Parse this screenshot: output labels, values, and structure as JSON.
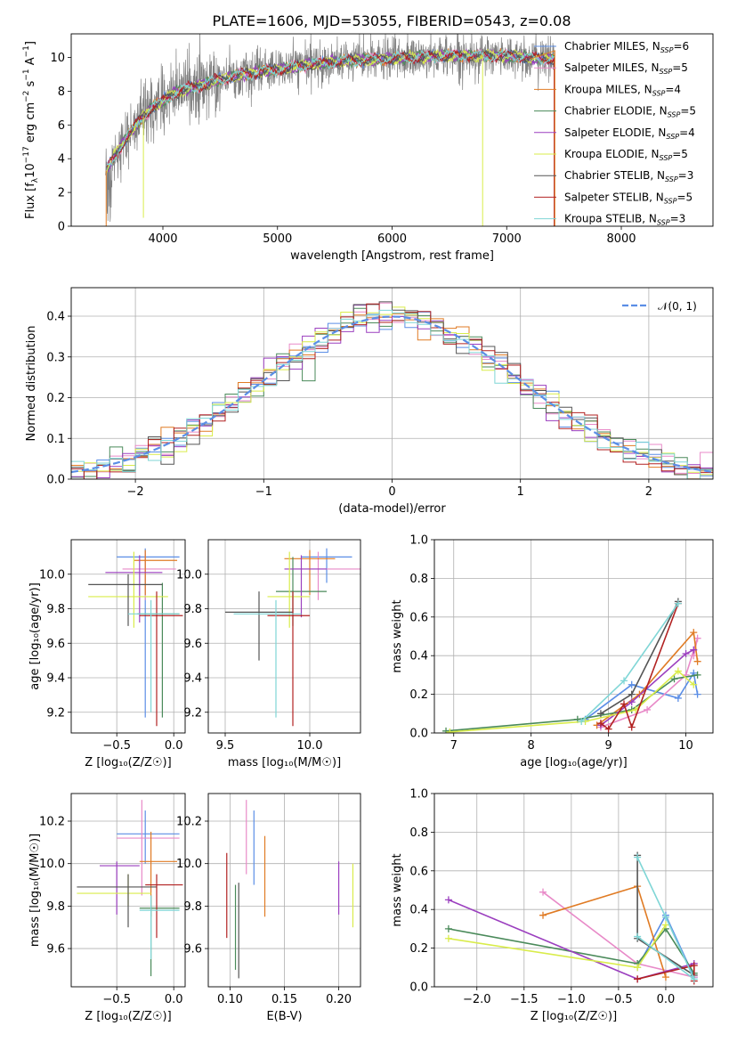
{
  "figure": {
    "title": "PLATE=1606, MJD=53055, FIBERID=0543, z=0.08"
  },
  "legend_models": [
    {
      "name": "Chabrier MILES, N",
      "sub": "SSP",
      "tail": "=6",
      "color": "#5b8ee6"
    },
    {
      "name": "Salpeter MILES, N",
      "sub": "SSP",
      "tail": "=5",
      "color": "#e88ac8"
    },
    {
      "name": "Kroupa MILES, N",
      "sub": "SSP",
      "tail": "=4",
      "color": "#e07b24"
    },
    {
      "name": "Chabrier ELODIE, N",
      "sub": "SSP",
      "tail": "=5",
      "color": "#4a8a5a"
    },
    {
      "name": "Salpeter ELODIE, N",
      "sub": "SSP",
      "tail": "=4",
      "color": "#9b3fbf"
    },
    {
      "name": "Kroupa ELODIE, N",
      "sub": "SSP",
      "tail": "=5",
      "color": "#d9ec4a"
    },
    {
      "name": "Chabrier STELIB, N",
      "sub": "SSP",
      "tail": "=3",
      "color": "#555555"
    },
    {
      "name": "Salpeter STELIB, N",
      "sub": "SSP",
      "tail": "=5",
      "color": "#b22222"
    },
    {
      "name": "Kroupa STELIB, N",
      "sub": "SSP",
      "tail": "=3",
      "color": "#7fd6d6"
    }
  ],
  "chart_data": [
    {
      "type": "line",
      "id": "spectrum",
      "xlabel": "wavelength [Angstrom, rest frame]",
      "ylabel_main": "Flux [f",
      "ylabel_sub": "λ",
      "ylabel_rest": "10",
      "ylabel_exp": "−17",
      "ylabel_units": " erg cm",
      "ylabel_exp2": "−2",
      "ylabel_s": " s",
      "ylabel_exp3": "−1",
      "ylabel_a": " A",
      "ylabel_exp4": "−1",
      "ylabel_end": "]",
      "xlim": [
        3200,
        8800
      ],
      "ylim": [
        0,
        11.4
      ],
      "xticks": [
        "4000",
        "5000",
        "6000",
        "7000",
        "8000"
      ],
      "xtick_values": [
        4000,
        5000,
        6000,
        7000,
        8000
      ],
      "yticks": [
        "0",
        "2",
        "4",
        "6",
        "8",
        "10"
      ],
      "ytick_values": [
        0,
        2,
        4,
        6,
        8,
        10
      ],
      "continuum_x": [
        3500,
        3600,
        3700,
        3800,
        3900,
        4000,
        4100,
        4300,
        4500,
        4700,
        5000,
        5300,
        5600,
        5900,
        6200,
        6500,
        6800,
        7000,
        7200,
        7400
      ],
      "continuum_y": [
        3.3,
        4.4,
        5.4,
        6.3,
        7.0,
        7.4,
        7.9,
        8.3,
        8.7,
        9.0,
        9.3,
        9.6,
        9.8,
        9.9,
        10.0,
        10.1,
        10.1,
        10.1,
        10.0,
        9.9
      ],
      "data_range": [
        3500,
        7420
      ],
      "model_end": [
        7420,
        8450
      ]
    },
    {
      "type": "line",
      "id": "residual-histogram",
      "xlabel": "(data-model)/error",
      "ylabel": "Normed distribution",
      "xlim": [
        -2.5,
        2.5
      ],
      "ylim": [
        0,
        0.47
      ],
      "xticks": [
        "−2",
        "−1",
        "0",
        "1",
        "2"
      ],
      "xtick_values": [
        -2,
        -1,
        0,
        1,
        2
      ],
      "yticks": [
        "0.0",
        "0.1",
        "0.2",
        "0.3",
        "0.4"
      ],
      "ytick_values": [
        0,
        0.1,
        0.2,
        0.3,
        0.4
      ],
      "legend": "𝒩(0, 1)",
      "gaussian": {
        "mu": 0,
        "sigma": 1
      }
    },
    {
      "type": "scatter",
      "id": "age-vs-Z",
      "xlabel": "Z [log₁₀(Z/Z☉)]",
      "ylabel": "age  [log₁₀(age/yr)]",
      "xlim": [
        -0.9,
        0.1
      ],
      "ylim": [
        9.08,
        10.2
      ],
      "xticks": [
        "−0.5",
        "0.0"
      ],
      "xtick_values": [
        -0.5,
        0.0
      ],
      "yticks": [
        "9.2",
        "9.4",
        "9.6",
        "9.8",
        "10.0"
      ],
      "ytick_values": [
        9.2,
        9.4,
        9.6,
        9.8,
        10.0
      ],
      "points": [
        {
          "x": -0.25,
          "y": 10.1,
          "xe": [
            -0.5,
            0.05
          ],
          "ye": [
            9.17,
            10.15
          ],
          "series": 0
        },
        {
          "x": -0.25,
          "y": 10.03,
          "xe": [
            -0.45,
            0.02
          ],
          "ye": [
            9.85,
            10.13
          ],
          "series": 1
        },
        {
          "x": -0.25,
          "y": 10.08,
          "xe": [
            -0.35,
            0.03
          ],
          "ye": [
            9.88,
            10.14
          ],
          "series": 2
        },
        {
          "x": -0.1,
          "y": 9.77,
          "xe": [
            -0.32,
            0.05
          ],
          "ye": [
            9.17,
            9.95
          ],
          "series": 3
        },
        {
          "x": -0.3,
          "y": 10.01,
          "xe": [
            -0.6,
            -0.1
          ],
          "ye": [
            9.72,
            10.11
          ],
          "series": 4
        },
        {
          "x": -0.35,
          "y": 9.87,
          "xe": [
            -0.75,
            -0.05
          ],
          "ye": [
            9.69,
            10.13
          ],
          "series": 5
        },
        {
          "x": -0.4,
          "y": 9.94,
          "xe": [
            -0.75,
            -0.1
          ],
          "ye": [
            9.7,
            10.0
          ],
          "series": 6
        },
        {
          "x": -0.15,
          "y": 9.76,
          "xe": [
            -0.3,
            0.08
          ],
          "ye": [
            9.12,
            9.9
          ],
          "series": 7
        },
        {
          "x": -0.2,
          "y": 9.77,
          "xe": [
            -0.4,
            0.05
          ],
          "ye": [
            9.2,
            9.85
          ],
          "series": 8
        }
      ]
    },
    {
      "type": "scatter",
      "id": "age-vs-mass",
      "xlabel": "mass [log₁₀(M/M☉)]",
      "ylabel": "",
      "xlim": [
        9.4,
        10.3
      ],
      "ylim": [
        9.08,
        10.2
      ],
      "xticks": [
        "9.5",
        "10.0"
      ],
      "xtick_values": [
        9.5,
        10.0
      ],
      "yticks": [
        "9.2",
        "9.4",
        "9.6",
        "9.8",
        "10.0"
      ],
      "ytick_values": [
        9.2,
        9.4,
        9.6,
        9.8,
        10.0
      ],
      "points": [
        {
          "x": 10.1,
          "y": 10.1,
          "xe": [
            9.95,
            10.25
          ],
          "ye": [
            9.95,
            10.15
          ],
          "series": 0
        },
        {
          "x": 10.05,
          "y": 10.03,
          "xe": [
            9.9,
            10.3
          ],
          "ye": [
            9.85,
            10.13
          ],
          "series": 1
        },
        {
          "x": 10.0,
          "y": 10.09,
          "xe": [
            9.85,
            10.15
          ],
          "ye": [
            9.88,
            10.14
          ],
          "series": 2
        },
        {
          "x": 9.9,
          "y": 9.9,
          "xe": [
            9.8,
            10.1
          ],
          "ye": [
            9.7,
            10.1
          ],
          "series": 3
        },
        {
          "x": 9.95,
          "y": 10.03,
          "xe": [
            9.85,
            10.1
          ],
          "ye": [
            9.75,
            10.11
          ],
          "series": 4
        },
        {
          "x": 9.88,
          "y": 9.87,
          "xe": [
            9.75,
            10.0
          ],
          "ye": [
            9.69,
            10.13
          ],
          "series": 5
        },
        {
          "x": 9.7,
          "y": 9.78,
          "xe": [
            9.5,
            9.9
          ],
          "ye": [
            9.5,
            9.9
          ],
          "series": 6
        },
        {
          "x": 9.9,
          "y": 9.76,
          "xe": [
            9.75,
            10.0
          ],
          "ye": [
            9.12,
            9.9
          ],
          "series": 7
        },
        {
          "x": 9.8,
          "y": 9.77,
          "xe": [
            9.55,
            9.95
          ],
          "ye": [
            9.17,
            9.85
          ],
          "series": 8
        }
      ]
    },
    {
      "type": "line",
      "id": "weight-vs-age",
      "xlabel": "age  [log₁₀(age/yr)]",
      "ylabel": "mass weight",
      "xlim": [
        6.75,
        10.35
      ],
      "ylim": [
        0,
        1.0
      ],
      "xticks": [
        "7",
        "8",
        "9",
        "10"
      ],
      "xtick_values": [
        7,
        8,
        9,
        10
      ],
      "yticks": [
        "0.0",
        "0.2",
        "0.4",
        "0.6",
        "0.8",
        "1.0"
      ],
      "ytick_values": [
        0,
        0.2,
        0.4,
        0.6,
        0.8,
        1.0
      ],
      "series": [
        {
          "name": "Chabrier MILES",
          "x": [
            8.7,
            9.3,
            9.9,
            10.1,
            10.15
          ],
          "y": [
            0.07,
            0.25,
            0.18,
            0.31,
            0.2
          ]
        },
        {
          "name": "Salpeter MILES",
          "x": [
            8.9,
            9.5,
            10.0,
            10.15,
            10.1
          ],
          "y": [
            0.03,
            0.12,
            0.3,
            0.49,
            0.4
          ]
        },
        {
          "name": "Kroupa MILES",
          "x": [
            8.85,
            9.4,
            10.1,
            10.15
          ],
          "y": [
            0.04,
            0.2,
            0.52,
            0.37
          ]
        },
        {
          "name": "Chabrier ELODIE",
          "x": [
            6.9,
            8.6,
            9.3,
            9.85,
            10.15
          ],
          "y": [
            0.01,
            0.07,
            0.12,
            0.28,
            0.3
          ]
        },
        {
          "name": "Salpeter ELODIE",
          "x": [
            8.9,
            9.3,
            10.0,
            10.1
          ],
          "y": [
            0.04,
            0.16,
            0.41,
            0.43
          ]
        },
        {
          "name": "Kroupa ELODIE",
          "x": [
            6.95,
            8.7,
            9.35,
            9.9,
            10.1
          ],
          "y": [
            0.005,
            0.06,
            0.12,
            0.32,
            0.25
          ]
        },
        {
          "name": "Chabrier STELIB",
          "x": [
            8.9,
            9.3,
            9.9
          ],
          "y": [
            0.1,
            0.2,
            0.68
          ]
        },
        {
          "name": "Salpeter STELIB",
          "x": [
            8.9,
            9.0,
            9.2,
            9.3,
            9.9
          ],
          "y": [
            0.05,
            0.02,
            0.15,
            0.03,
            0.67
          ]
        },
        {
          "name": "Kroupa STELIB",
          "x": [
            8.65,
            9.2,
            9.9
          ],
          "y": [
            0.06,
            0.27,
            0.67
          ]
        }
      ]
    },
    {
      "type": "scatter",
      "id": "mass-vs-Z",
      "xlabel": "Z [log₁₀(Z/Z☉)]",
      "ylabel": "mass [log₁₀(M/M☉)]",
      "xlim": [
        -0.9,
        0.1
      ],
      "ylim": [
        9.42,
        10.33
      ],
      "xticks": [
        "−0.5",
        "0.0"
      ],
      "xtick_values": [
        -0.5,
        0.0
      ],
      "yticks": [
        "9.6",
        "9.8",
        "10.0",
        "10.2"
      ],
      "ytick_values": [
        9.6,
        9.8,
        10.0,
        10.2
      ],
      "points": [
        {
          "x": -0.25,
          "y": 10.14,
          "xe": [
            -0.5,
            0.05
          ],
          "ye": [
            10.0,
            10.25
          ],
          "series": 0
        },
        {
          "x": -0.28,
          "y": 10.12,
          "xe": [
            -0.5,
            0.05
          ],
          "ye": [
            9.85,
            10.3
          ],
          "series": 1
        },
        {
          "x": -0.2,
          "y": 10.01,
          "xe": [
            -0.3,
            0.03
          ],
          "ye": [
            9.75,
            10.15
          ],
          "series": 2
        },
        {
          "x": -0.2,
          "y": 9.79,
          "xe": [
            -0.3,
            0.05
          ],
          "ye": [
            9.47,
            9.85
          ],
          "series": 3
        },
        {
          "x": -0.5,
          "y": 9.99,
          "xe": [
            -0.65,
            -0.3
          ],
          "ye": [
            9.76,
            10.01
          ],
          "series": 4
        },
        {
          "x": -0.4,
          "y": 9.86,
          "xe": [
            -0.85,
            -0.2
          ],
          "ye": [
            9.8,
            9.95
          ],
          "series": 5
        },
        {
          "x": -0.4,
          "y": 9.89,
          "xe": [
            -0.85,
            -0.15
          ],
          "ye": [
            9.7,
            9.95
          ],
          "series": 6
        },
        {
          "x": -0.15,
          "y": 9.9,
          "xe": [
            -0.25,
            0.08
          ],
          "ye": [
            9.65,
            9.95
          ],
          "series": 7
        },
        {
          "x": -0.2,
          "y": 9.78,
          "xe": [
            -0.3,
            0.05
          ],
          "ye": [
            9.55,
            9.85
          ],
          "series": 8
        }
      ]
    },
    {
      "type": "scatter",
      "id": "mass-vs-EBV",
      "xlabel": "E(B-V)",
      "ylabel": "",
      "xlim": [
        0.08,
        0.22
      ],
      "ylim": [
        9.42,
        10.33
      ],
      "xticks": [
        "0.10",
        "0.15",
        "0.20"
      ],
      "xtick_values": [
        0.1,
        0.15,
        0.2
      ],
      "yticks": [
        "9.6",
        "9.8",
        "10.0",
        "10.2"
      ],
      "ytick_values": [
        9.6,
        9.8,
        10.0,
        10.2
      ],
      "points": [
        {
          "x": 0.097,
          "ye": [
            9.65,
            10.05
          ],
          "series": 7
        },
        {
          "x": 0.105,
          "ye": [
            9.5,
            9.9
          ],
          "series": 3
        },
        {
          "x": 0.108,
          "ye": [
            9.46,
            9.91
          ],
          "series": 6
        },
        {
          "x": 0.115,
          "ye": [
            9.95,
            10.3
          ],
          "series": 1
        },
        {
          "x": 0.122,
          "ye": [
            9.9,
            10.25
          ],
          "series": 0
        },
        {
          "x": 0.132,
          "ye": [
            9.75,
            10.13
          ],
          "series": 2
        },
        {
          "x": 0.2,
          "ye": [
            9.76,
            10.01
          ],
          "series": 4
        },
        {
          "x": 0.213,
          "ye": [
            9.7,
            10.0
          ],
          "series": 5
        }
      ]
    },
    {
      "type": "line",
      "id": "weight-vs-Z",
      "xlabel": "Z [log₁₀(Z/Z☉)]",
      "ylabel": "mass weight",
      "xlim": [
        -2.45,
        0.5
      ],
      "ylim": [
        0,
        1.0
      ],
      "xticks": [
        "−2.0",
        "−1.5",
        "−1.0",
        "−0.5",
        "0.0"
      ],
      "xtick_values": [
        -2.0,
        -1.5,
        -1.0,
        -0.5,
        0.0
      ],
      "yticks": [
        "0.0",
        "0.2",
        "0.4",
        "0.6",
        "0.8",
        "1.0"
      ],
      "ytick_values": [
        0,
        0.2,
        0.4,
        0.6,
        0.8,
        1.0
      ],
      "series": [
        {
          "name": "Chabrier MILES",
          "x": [
            -0.3,
            0.0,
            0.3
          ],
          "y": [
            0.1,
            0.37,
            0.05
          ]
        },
        {
          "name": "Salpeter MILES",
          "x": [
            -1.3,
            -0.3,
            0.3
          ],
          "y": [
            0.49,
            0.12,
            0.05
          ]
        },
        {
          "name": "Kroupa MILES",
          "x": [
            -1.3,
            -0.3,
            0.0
          ],
          "y": [
            0.37,
            0.52,
            0.05
          ]
        },
        {
          "name": "Chabrier ELODIE",
          "x": [
            -2.3,
            -0.3,
            0.0,
            0.3
          ],
          "y": [
            0.3,
            0.12,
            0.3,
            0.07
          ]
        },
        {
          "name": "Salpeter ELODIE",
          "x": [
            -2.3,
            -0.3,
            0.3
          ],
          "y": [
            0.45,
            0.04,
            0.12
          ]
        },
        {
          "name": "Kroupa ELODIE",
          "x": [
            -2.3,
            -0.3,
            0.0
          ],
          "y": [
            0.25,
            0.1,
            0.32
          ]
        },
        {
          "name": "Chabrier STELIB",
          "x": [
            -0.3,
            -0.3,
            0.3
          ],
          "y": [
            0.68,
            0.25,
            0.06
          ]
        },
        {
          "name": "Salpeter STELIB",
          "x": [
            -0.3,
            0.3,
            0.3
          ],
          "y": [
            0.04,
            0.11,
            0.03
          ]
        },
        {
          "name": "Kroupa STELIB",
          "x": [
            -0.3,
            0.0,
            0.3,
            -0.3
          ],
          "y": [
            0.67,
            0.36,
            0.04,
            0.26
          ]
        }
      ]
    }
  ]
}
